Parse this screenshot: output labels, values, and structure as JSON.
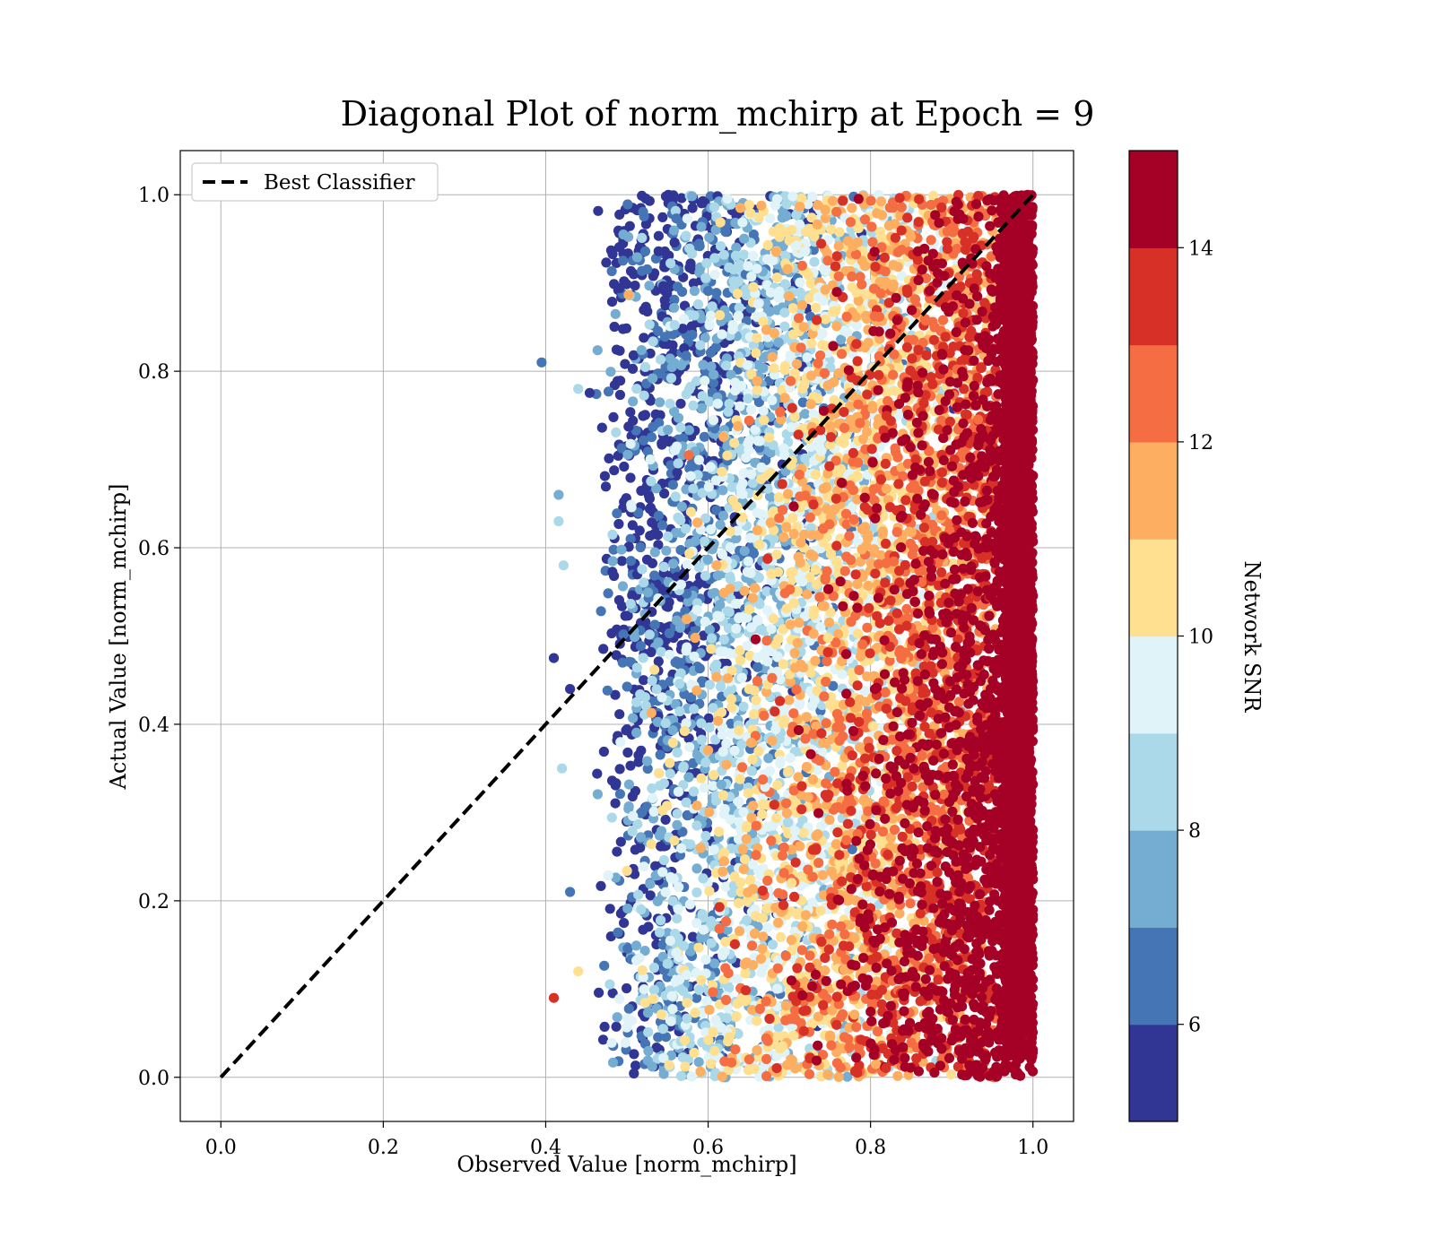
{
  "chart_data": {
    "type": "scatter",
    "title": "Diagonal Plot of norm_mchirp at Epoch = 9",
    "xlabel": "Observed Value [norm_mchirp]",
    "ylabel": "Actual Value [norm_mchirp]",
    "xlim": [
      -0.05,
      1.05
    ],
    "ylim": [
      -0.05,
      1.05
    ],
    "x_ticks": [
      "0.0",
      "0.2",
      "0.4",
      "0.6",
      "0.8",
      "1.0"
    ],
    "y_ticks": [
      "0.0",
      "0.2",
      "0.4",
      "0.6",
      "0.8",
      "1.0"
    ],
    "grid": true,
    "legend": {
      "placement": "upper-left",
      "entries": [
        "Best Classifier"
      ]
    },
    "reference_line": {
      "name": "Best Classifier",
      "style": "dashed",
      "color": "#000000",
      "x": [
        0.0,
        1.0
      ],
      "y": [
        0.0,
        1.0
      ]
    },
    "colorbar": {
      "label": "Network SNR",
      "range": [
        5,
        15
      ],
      "ticks": [
        "6",
        "8",
        "10",
        "12",
        "14"
      ],
      "tick_values": [
        6,
        8,
        10,
        12,
        14
      ],
      "colormap": "RdYlBu_r",
      "colors": [
        "#313695",
        "#4575b4",
        "#74add1",
        "#abd9e9",
        "#e0f3f8",
        "#fee090",
        "#fdae61",
        "#f46d43",
        "#d73027",
        "#a50026"
      ]
    },
    "scatter_description_approx": {
      "x_range_observed": [
        0.39,
        1.0
      ],
      "y_range_actual": [
        0.0,
        1.0
      ],
      "trend": "low SNR points cluster at observed 0.45-0.6, high SNR points at observed 0.95-1.0"
    }
  }
}
